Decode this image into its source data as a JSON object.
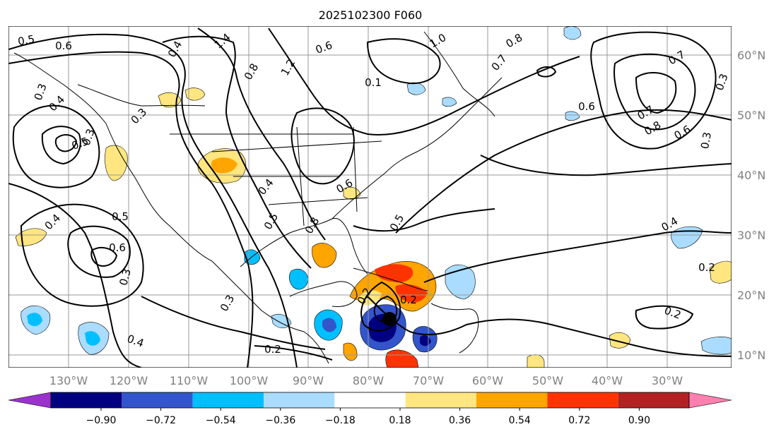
{
  "title": "2025102300 F060",
  "x_ticks": [
    "130°W",
    "120°W",
    "110°W",
    "100°W",
    "90°W",
    "80°W",
    "70°W",
    "60°W",
    "50°W",
    "40°W",
    "30°W"
  ],
  "y_ticks": [
    "60°N",
    "50°N",
    "40°N",
    "30°N",
    "20°N",
    "10°N"
  ],
  "colorbar": {
    "colors": [
      "#9933cc",
      "#000080",
      "#3355cc",
      "#00bfff",
      "#aadcff",
      "#ffffff",
      "#ffe680",
      "#ffa500",
      "#ff3300",
      "#b22222",
      "#ff80b0"
    ],
    "tick_labels": [
      "−0.90",
      "−0.72",
      "−0.54",
      "−0.36",
      "−0.18",
      "0.18",
      "0.36",
      "0.54",
      "0.72",
      "0.90"
    ]
  },
  "contour_labels": [
    "0.5",
    "0.6",
    "1.4",
    "0.6",
    "1.0",
    "0.8",
    "0.7",
    "0.3",
    "0.4",
    "0.8",
    "1.2",
    "0.1",
    "0.7",
    "0.6",
    "0.8",
    "0.7",
    "0.6",
    "0.5",
    "0.3",
    "0.6",
    "0.4",
    "0.5",
    "0.8",
    "0.5",
    "0.4",
    "0.3",
    "0.4",
    "0.5",
    "0.6",
    "0.3",
    "0.3",
    "0.2",
    "0.2",
    "0.4",
    "0.2",
    "0.4",
    "0.2",
    "0.2",
    "0.3",
    "0.3"
  ],
  "storm_marker": "center"
}
